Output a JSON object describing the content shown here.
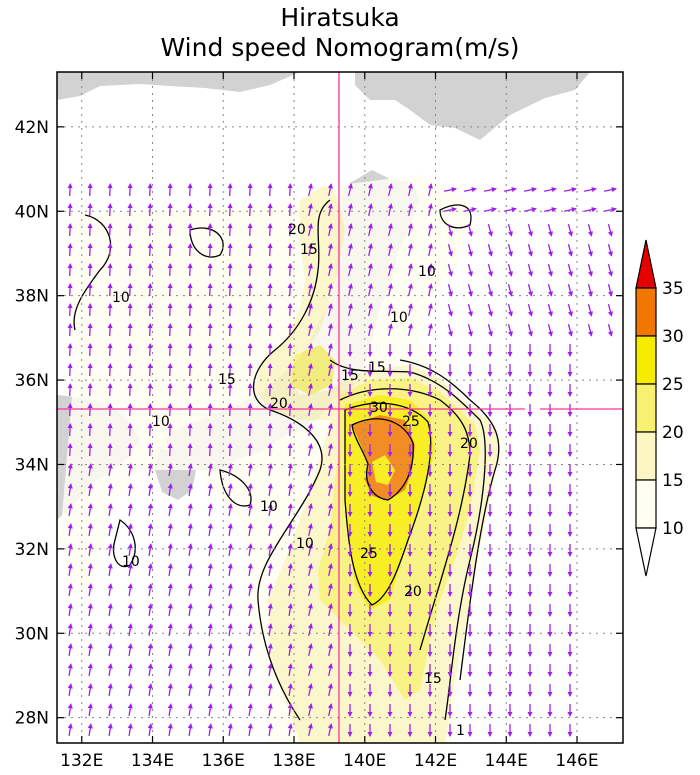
{
  "title": {
    "line1": "Hiratsuka",
    "line2": "Wind speed Nomogram(m/s)"
  },
  "axes": {
    "lon_ticks": [
      "132E",
      "134E",
      "136E",
      "138E",
      "140E",
      "142E",
      "144E",
      "146E"
    ],
    "lat_ticks": [
      "28N",
      "30N",
      "32N",
      "34N",
      "36N",
      "38N",
      "40N",
      "42N"
    ],
    "lon_range": [
      131.3,
      147.3
    ],
    "lat_range": [
      27.4,
      43.3
    ],
    "grid": "dotted"
  },
  "crosshair": {
    "lon": 139.35,
    "lat": 35.32,
    "color": "#ff3399"
  },
  "colorbar": {
    "levels": [
      "10",
      "15",
      "20",
      "25",
      "30",
      "35"
    ],
    "colors": [
      "#fefef2",
      "#fbf6c2",
      "#f8f070",
      "#f6ec00",
      "#f07800",
      "#e80000"
    ]
  },
  "contour_labels": [
    "10",
    "10",
    "10",
    "10",
    "10",
    "10",
    "10",
    "15",
    "15",
    "15",
    "15",
    "20",
    "20",
    "20",
    "20",
    "25",
    "25",
    "30",
    "15",
    "1"
  ],
  "colors": {
    "land": "#d2d2d2",
    "vector": "#a020f0",
    "contour": "#000000"
  }
}
